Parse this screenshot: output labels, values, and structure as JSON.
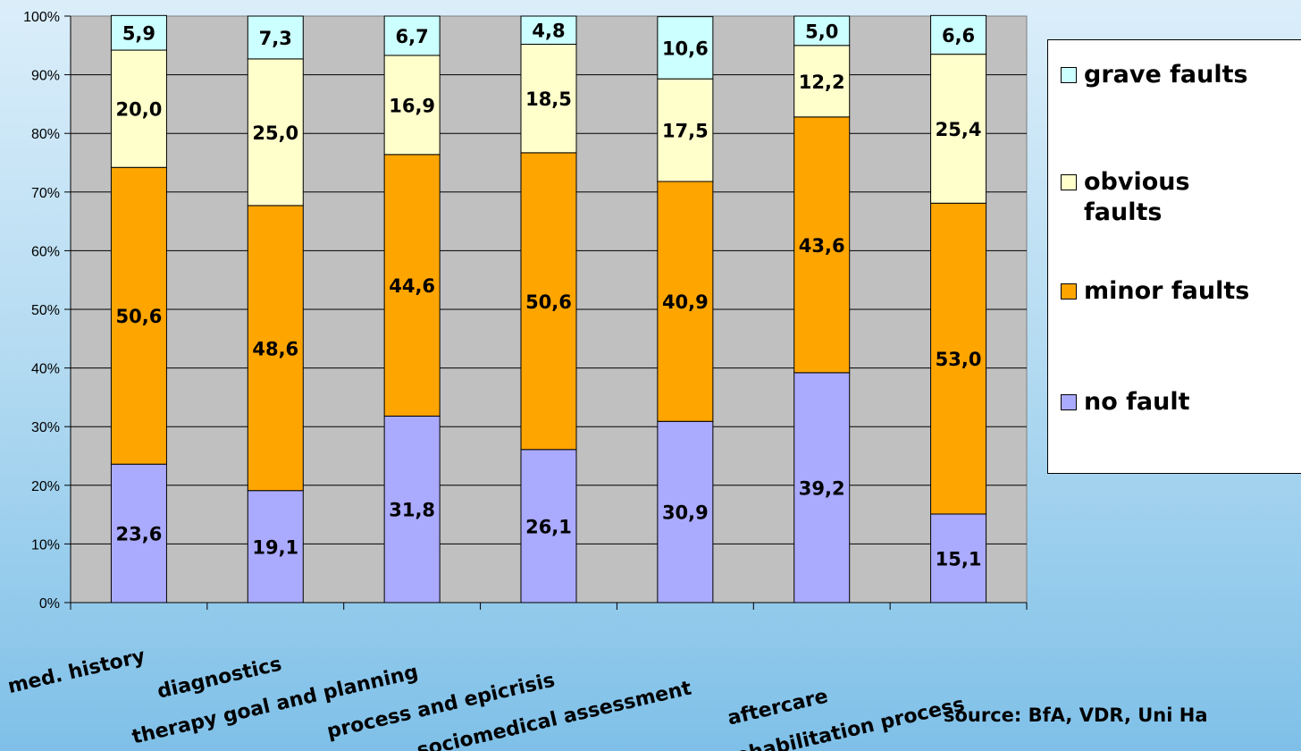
{
  "chart_data": {
    "type": "bar",
    "stacked": true,
    "percent_stacked": true,
    "categories": [
      "med. history",
      "diagnostics",
      "therapy goal and planning",
      "process and epicrisis",
      "sociomedical assessment",
      "aftercare",
      "entire rehabilitation process"
    ],
    "series": [
      {
        "name": "no fault",
        "color": "#aaaaff",
        "values": [
          23.6,
          19.1,
          31.8,
          26.1,
          30.9,
          39.2,
          15.1
        ],
        "labels": [
          "23,6",
          "19,1",
          "31,8",
          "26,1",
          "30,9",
          "39,2",
          "15,1"
        ]
      },
      {
        "name": "minor faults",
        "color": "#ffa500",
        "values": [
          50.6,
          48.6,
          44.6,
          50.6,
          40.9,
          43.6,
          53.0
        ],
        "labels": [
          "50,6",
          "48,6",
          "44,6",
          "50,6",
          "40,9",
          "43,6",
          "53,0"
        ]
      },
      {
        "name": "obvious faults",
        "color": "#ffffcc",
        "values": [
          20.0,
          25.0,
          16.9,
          18.5,
          17.5,
          12.2,
          25.4
        ],
        "labels": [
          "20,0",
          "25,0",
          "16,9",
          "18,5",
          "17,5",
          "12,2",
          "25,4"
        ]
      },
      {
        "name": "grave faults",
        "color": "#ccffff",
        "values": [
          5.9,
          7.3,
          6.7,
          4.8,
          10.6,
          5.0,
          6.6
        ],
        "labels": [
          "5,9",
          "7,3",
          "6,7",
          "4,8",
          "10,6",
          "5,0",
          "6,6"
        ]
      }
    ],
    "yticks": [
      "0%",
      "10%",
      "20%",
      "30%",
      "40%",
      "50%",
      "60%",
      "70%",
      "80%",
      "90%",
      "100%"
    ],
    "ylim": [
      0,
      100
    ],
    "grid": true,
    "legend": "right",
    "plot_background": "#c0c0c0"
  },
  "legend": {
    "items": [
      {
        "label": "grave faults",
        "color": "#ccffff"
      },
      {
        "label": "obvious faults",
        "color": "#ffffcc"
      },
      {
        "label": "minor faults",
        "color": "#ffa500"
      },
      {
        "label": "no fault",
        "color": "#aaaaff"
      }
    ]
  },
  "source": "source: BfA, VDR, Uni Ha"
}
